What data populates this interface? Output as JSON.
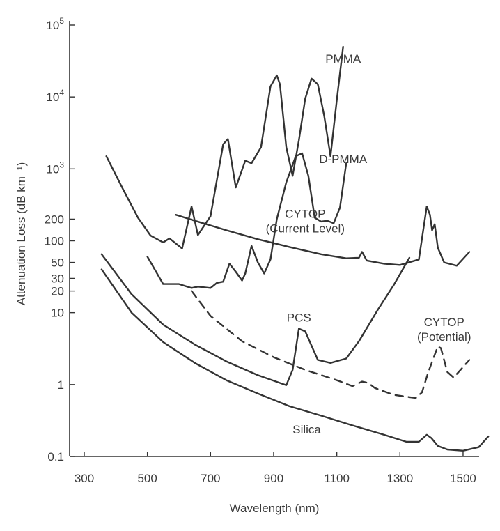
{
  "chart_data": {
    "type": "line",
    "xlabel": "Wavelength (nm)",
    "ylabel": "Attenuation Loss (dB km⁻¹)",
    "xlim": [
      300,
      1580
    ],
    "x_ticks": [
      "300",
      "500",
      "700",
      "900",
      "1100",
      "1300",
      "1500"
    ],
    "y_scale": "log",
    "ylim": [
      0.1,
      100000
    ],
    "y_ticks": [
      {
        "value": 100000,
        "label": "10",
        "exp": "5"
      },
      {
        "value": 10000,
        "label": "10",
        "exp": "4"
      },
      {
        "value": 1000,
        "label": "10",
        "exp": "3"
      },
      {
        "value": 200,
        "label": "200",
        "exp": ""
      },
      {
        "value": 100,
        "label": "100",
        "exp": ""
      },
      {
        "value": 50,
        "label": "50",
        "exp": ""
      },
      {
        "value": 30,
        "label": "30",
        "exp": ""
      },
      {
        "value": 20,
        "label": "20",
        "exp": ""
      },
      {
        "value": 10,
        "label": "10",
        "exp": ""
      },
      {
        "value": 1,
        "label": "1",
        "exp": ""
      },
      {
        "value": 0.1,
        "label": "0.1",
        "exp": ""
      }
    ],
    "series": [
      {
        "name": "PMMA",
        "label_lines": [
          "PMMA"
        ],
        "label_at": [
          1120,
          30000
        ],
        "style": "solid",
        "x": [
          370,
          420,
          470,
          510,
          550,
          570,
          610,
          640,
          660,
          700,
          740,
          755,
          780,
          810,
          830,
          860,
          890,
          910,
          920,
          940,
          960,
          980,
          1000,
          1020,
          1040,
          1060,
          1080,
          1100,
          1120
        ],
        "y": [
          1500,
          550,
          210,
          118,
          95,
          108,
          78,
          300,
          120,
          220,
          2200,
          2600,
          550,
          1300,
          1200,
          2000,
          14000,
          20000,
          15000,
          2000,
          800,
          2500,
          9500,
          18000,
          15000,
          5500,
          1500,
          9000,
          50000
        ]
      },
      {
        "name": "D-PMMA",
        "label_lines": [
          "D-PMMA"
        ],
        "label_at": [
          1120,
          1200
        ],
        "style": "solid",
        "x": [
          500,
          550,
          600,
          640,
          660,
          700,
          720,
          740,
          760,
          780,
          800,
          810,
          830,
          850,
          870,
          890,
          910,
          940,
          970,
          990,
          1010,
          1030,
          1050,
          1070,
          1090,
          1110,
          1130
        ],
        "y": [
          60,
          25,
          25,
          22,
          23,
          22,
          26,
          27,
          48,
          37,
          28,
          35,
          85,
          50,
          35,
          55,
          200,
          650,
          1500,
          1650,
          800,
          210,
          185,
          190,
          175,
          290,
          1200
        ]
      },
      {
        "name": "CYTOP (Current Level)",
        "label_lines": [
          "CYTOP",
          "(Current Level)"
        ],
        "label_at": [
          1000,
          210
        ],
        "style": "solid",
        "x": [
          590,
          650,
          750,
          850,
          950,
          1050,
          1130,
          1170,
          1180,
          1195,
          1250,
          1300,
          1360,
          1385,
          1395,
          1402,
          1410,
          1420,
          1440,
          1480,
          1520
        ],
        "y": [
          230,
          190,
          140,
          105,
          82,
          65,
          57,
          58,
          70,
          53,
          48,
          46,
          55,
          300,
          230,
          140,
          170,
          80,
          50,
          45,
          70
        ]
      },
      {
        "name": "PCS",
        "label_lines": [
          "PCS"
        ],
        "label_at": [
          980,
          7.5
        ],
        "style": "solid",
        "x": [
          355,
          450,
          550,
          650,
          750,
          850,
          940,
          960,
          980,
          1000,
          1040,
          1080,
          1130,
          1170,
          1230,
          1280,
          1330
        ],
        "y": [
          65,
          18,
          6.8,
          3.6,
          2.1,
          1.35,
          0.98,
          1.6,
          6,
          5.5,
          2.2,
          2.0,
          2.3,
          4.0,
          11,
          24,
          58
        ]
      },
      {
        "name": "CYTOP (Potential)",
        "label_lines": [
          "CYTOP",
          "(Potential)"
        ],
        "label_at": [
          1440,
          6.5
        ],
        "style": "dashed",
        "x": [
          640,
          700,
          800,
          900,
          1000,
          1100,
          1150,
          1180,
          1200,
          1220,
          1280,
          1350,
          1370,
          1390,
          1420,
          1430,
          1450,
          1470,
          1520
        ],
        "y": [
          20,
          9,
          4.0,
          2.4,
          1.6,
          1.15,
          0.95,
          1.1,
          1.05,
          0.9,
          0.72,
          0.65,
          0.78,
          1.5,
          3.4,
          3.2,
          1.5,
          1.25,
          2.2
        ]
      },
      {
        "name": "Silica",
        "label_lines": [
          "Silica"
        ],
        "label_at": [
          1005,
          0.21
        ],
        "style": "solid",
        "x": [
          355,
          450,
          550,
          650,
          750,
          850,
          950,
          1050,
          1150,
          1250,
          1320,
          1360,
          1385,
          1400,
          1420,
          1450,
          1500,
          1550,
          1580
        ],
        "y": [
          40,
          10,
          3.9,
          2.0,
          1.15,
          0.75,
          0.5,
          0.37,
          0.27,
          0.2,
          0.16,
          0.16,
          0.2,
          0.18,
          0.14,
          0.125,
          0.12,
          0.135,
          0.19
        ]
      }
    ]
  }
}
